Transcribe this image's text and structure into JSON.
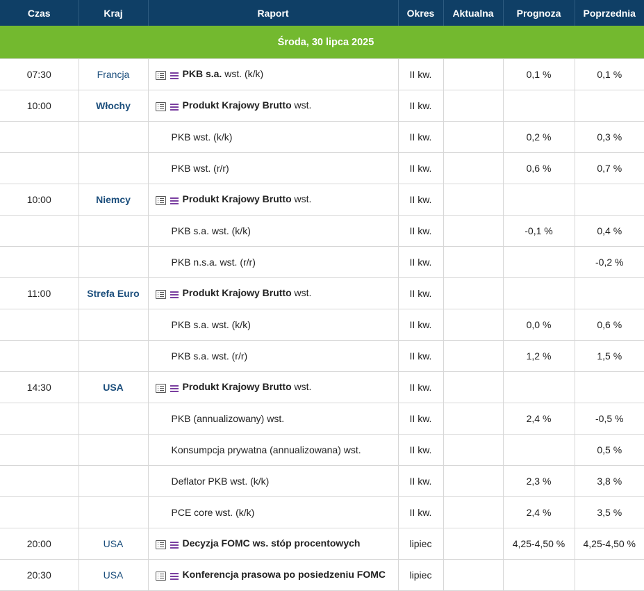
{
  "headers": {
    "time": "Czas",
    "country": "Kraj",
    "report": "Raport",
    "period": "Okres",
    "actual": "Aktualna",
    "forecast": "Prognoza",
    "previous": "Poprzednia"
  },
  "date_label": "Środa, 30 lipca 2025",
  "rows": [
    {
      "time": "07:30",
      "country": "Francja",
      "report_bold": "PKB s.a.",
      "report_rest": " wst. (k/k)",
      "period": "II kw.",
      "actual": "",
      "forecast": "0,1 %",
      "previous": "0,1 %"
    },
    {
      "time": "10:00",
      "country": "Włochy",
      "report_bold": "Produkt Krajowy Brutto",
      "report_rest": " wst.",
      "period": "II kw.",
      "actual": "",
      "forecast": "",
      "previous": ""
    },
    {
      "time": "",
      "country": "",
      "report_bold": "",
      "report_rest": "PKB wst. (k/k)",
      "period": "II kw.",
      "actual": "",
      "forecast": "0,2 %",
      "previous": "0,3 %"
    },
    {
      "time": "",
      "country": "",
      "report_bold": "",
      "report_rest": "PKB wst. (r/r)",
      "period": "II kw.",
      "actual": "",
      "forecast": "0,6 %",
      "previous": "0,7 %"
    },
    {
      "time": "10:00",
      "country": "Niemcy",
      "report_bold": "Produkt Krajowy Brutto",
      "report_rest": " wst.",
      "period": "II kw.",
      "actual": "",
      "forecast": "",
      "previous": ""
    },
    {
      "time": "",
      "country": "",
      "report_bold": "",
      "report_rest": "PKB s.a. wst. (k/k)",
      "period": "II kw.",
      "actual": "",
      "forecast": "-0,1 %",
      "previous": "0,4 %"
    },
    {
      "time": "",
      "country": "",
      "report_bold": "",
      "report_rest": "PKB n.s.a. wst. (r/r)",
      "period": "II kw.",
      "actual": "",
      "forecast": "",
      "previous": "-0,2 %"
    },
    {
      "time": "11:00",
      "country": "Strefa Euro",
      "report_bold": "Produkt Krajowy Brutto",
      "report_rest": " wst.",
      "period": "II kw.",
      "actual": "",
      "forecast": "",
      "previous": ""
    },
    {
      "time": "",
      "country": "",
      "report_bold": "",
      "report_rest": "PKB s.a. wst. (k/k)",
      "period": "II kw.",
      "actual": "",
      "forecast": "0,0 %",
      "previous": "0,6 %"
    },
    {
      "time": "",
      "country": "",
      "report_bold": "",
      "report_rest": "PKB s.a. wst. (r/r)",
      "period": "II kw.",
      "actual": "",
      "forecast": "1,2 %",
      "previous": "1,5 %"
    },
    {
      "time": "14:30",
      "country": "USA",
      "report_bold": "Produkt Krajowy Brutto",
      "report_rest": " wst.",
      "period": "II kw.",
      "actual": "",
      "forecast": "",
      "previous": ""
    },
    {
      "time": "",
      "country": "",
      "report_bold": "",
      "report_rest": "PKB (annualizowany) wst.",
      "period": "II kw.",
      "actual": "",
      "forecast": "2,4 %",
      "previous": "-0,5 %"
    },
    {
      "time": "",
      "country": "",
      "report_bold": "",
      "report_rest": "Konsumpcja prywatna (annualizowana) wst.",
      "period": "II kw.",
      "actual": "",
      "forecast": "",
      "previous": "0,5 %"
    },
    {
      "time": "",
      "country": "",
      "report_bold": "",
      "report_rest": "Deflator PKB wst. (k/k)",
      "period": "II kw.",
      "actual": "",
      "forecast": "2,3 %",
      "previous": "3,8 %"
    },
    {
      "time": "",
      "country": "",
      "report_bold": "",
      "report_rest": "PCE core wst. (k/k)",
      "period": "II kw.",
      "actual": "",
      "forecast": "2,4 %",
      "previous": "3,5 %"
    },
    {
      "time": "20:00",
      "country": "USA",
      "report_bold": "Decyzja FOMC ws. stóp procentowych",
      "report_rest": "",
      "period": "lipiec",
      "actual": "",
      "forecast": "4,25-4,50 %",
      "previous": "4,25-4,50 %"
    },
    {
      "time": "20:30",
      "country": "USA",
      "report_bold": "Konferencja prasowa po posiedzeniu FOMC",
      "report_rest": "",
      "period": "lipiec",
      "actual": "",
      "forecast": "",
      "previous": ""
    }
  ]
}
